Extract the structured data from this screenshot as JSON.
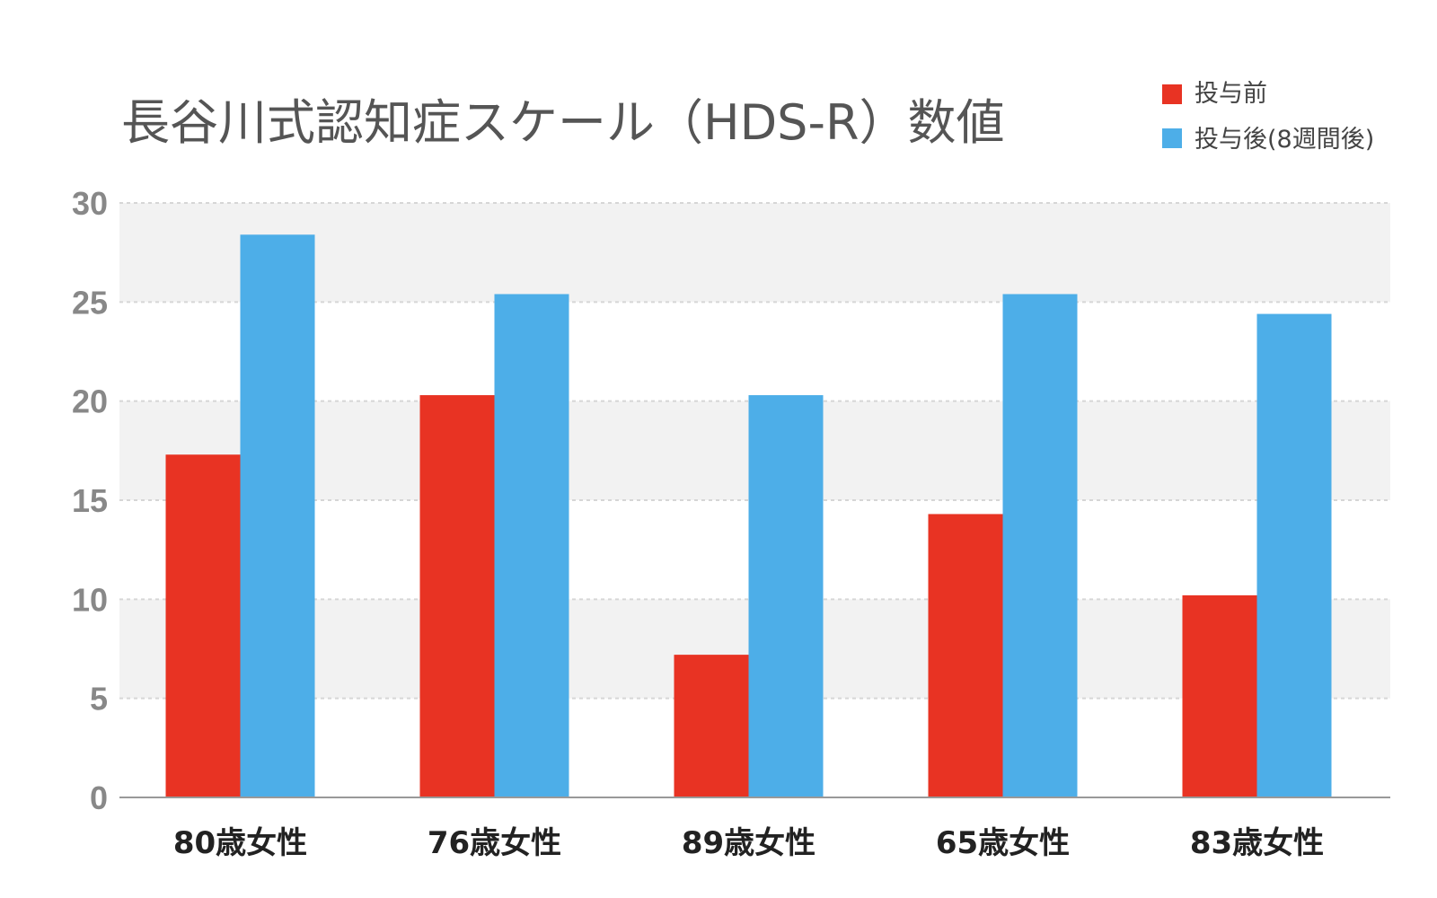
{
  "chart_data": {
    "type": "bar",
    "title": "長谷川式認知症スケール（HDS-R）数値",
    "categories": [
      "80歳女性",
      "76歳女性",
      "89歳女性",
      "65歳女性",
      "83歳女性"
    ],
    "series": [
      {
        "name": "投与前",
        "color": "#e83323",
        "values": [
          17.3,
          20.3,
          7.2,
          14.3,
          10.2
        ]
      },
      {
        "name": "投与後(8週間後)",
        "color": "#4daee8",
        "values": [
          28.4,
          25.4,
          20.3,
          25.4,
          24.4
        ]
      }
    ],
    "y_ticks": [
      "0",
      "5",
      "10",
      "15",
      "20",
      "25",
      "30"
    ],
    "ylim": [
      0,
      30
    ],
    "xlabel": "",
    "ylabel": "",
    "grid": true,
    "legend_position": "top-right"
  }
}
